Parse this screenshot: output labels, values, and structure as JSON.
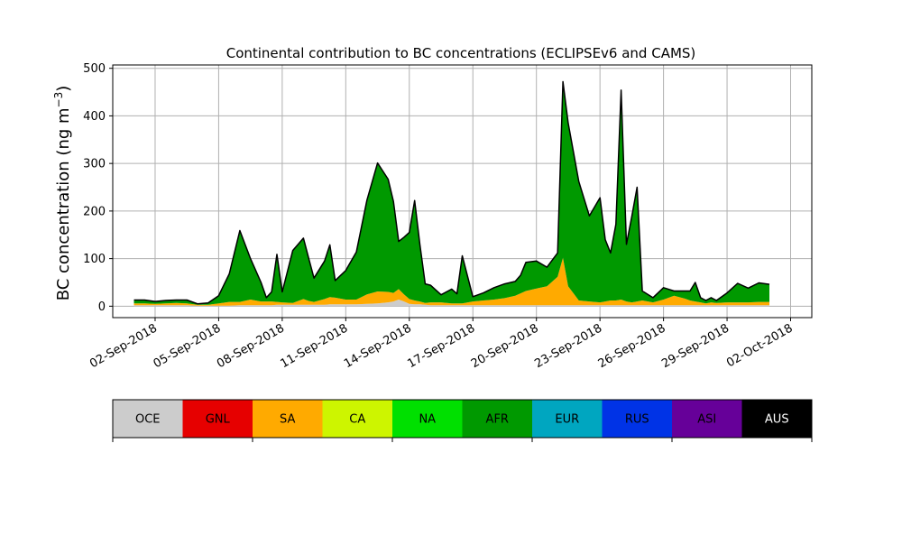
{
  "chart_data": {
    "type": "area",
    "title": "Continental contribution to BC concentrations (ECLIPSEv6 and CAMS)",
    "ylabel": "BC concentration (ng m",
    "ylabel_sup": "−3",
    "ylabel_close": ")",
    "xlabel": "",
    "ylim": [
      -24,
      507
    ],
    "xlim": [
      "2018-08-31",
      "2018-10-03"
    ],
    "grid": true,
    "x_ticks": [
      "02-Sep-2018",
      "05-Sep-2018",
      "08-Sep-2018",
      "11-Sep-2018",
      "14-Sep-2018",
      "17-Sep-2018",
      "20-Sep-2018",
      "23-Sep-2018",
      "26-Sep-2018",
      "29-Sep-2018",
      "02-Oct-2018"
    ],
    "y_ticks": [
      "0",
      "100",
      "200",
      "300",
      "400",
      "500"
    ],
    "y_tick_values": [
      0,
      100,
      200,
      300,
      400,
      500
    ],
    "legend_position": "bottom colorbar",
    "legend": [
      {
        "name": "OCE",
        "color": "#cccccc",
        "text_color": "#000000"
      },
      {
        "name": "GNL",
        "color": "#e60000",
        "text_color": "#000000"
      },
      {
        "name": "SA",
        "color": "#ffaa00",
        "text_color": "#000000"
      },
      {
        "name": "CA",
        "color": "#cdf500",
        "text_color": "#000000"
      },
      {
        "name": "NA",
        "color": "#00e000",
        "text_color": "#000000"
      },
      {
        "name": "AFR",
        "color": "#009900",
        "text_color": "#000000"
      },
      {
        "name": "EUR",
        "color": "#00a6c0",
        "text_color": "#000000"
      },
      {
        "name": "RUS",
        "color": "#0033e6",
        "text_color": "#000000"
      },
      {
        "name": "ASI",
        "color": "#660099",
        "text_color": "#000000"
      },
      {
        "name": "AUS",
        "color": "#000000",
        "text_color": "#ffffff"
      }
    ],
    "x": [
      "2018-09-01",
      "2018-09-01 12:00",
      "2018-09-02",
      "2018-09-02 12:00",
      "2018-09-03",
      "2018-09-03 12:00",
      "2018-09-04",
      "2018-09-04 12:00",
      "2018-09-05",
      "2018-09-05 12:00",
      "2018-09-06",
      "2018-09-06 12:00",
      "2018-09-07",
      "2018-09-07 06:00",
      "2018-09-07 12:00",
      "2018-09-07 18:00",
      "2018-09-08",
      "2018-09-08 12:00",
      "2018-09-09",
      "2018-09-09 06:00",
      "2018-09-09 12:00",
      "2018-09-10",
      "2018-09-10 06:00",
      "2018-09-10 12:00",
      "2018-09-11",
      "2018-09-11 12:00",
      "2018-09-12",
      "2018-09-12 12:00",
      "2018-09-13",
      "2018-09-13 06:00",
      "2018-09-13 12:00",
      "2018-09-13 18:00",
      "2018-09-14",
      "2018-09-14 06:00",
      "2018-09-14 12:00",
      "2018-09-14 18:00",
      "2018-09-15",
      "2018-09-15 12:00",
      "2018-09-16",
      "2018-09-16 06:00",
      "2018-09-16 12:00",
      "2018-09-17",
      "2018-09-17 12:00",
      "2018-09-18",
      "2018-09-18 12:00",
      "2018-09-19",
      "2018-09-19 06:00",
      "2018-09-19 12:00",
      "2018-09-20",
      "2018-09-20 12:00",
      "2018-09-21",
      "2018-09-21 06:00",
      "2018-09-21 12:00",
      "2018-09-22",
      "2018-09-22 12:00",
      "2018-09-23",
      "2018-09-23 06:00",
      "2018-09-23 12:00",
      "2018-09-23 18:00",
      "2018-09-24",
      "2018-09-24 06:00",
      "2018-09-24 12:00",
      "2018-09-24 18:00",
      "2018-09-25",
      "2018-09-25 12:00",
      "2018-09-26",
      "2018-09-26 12:00",
      "2018-09-27",
      "2018-09-27 06:00",
      "2018-09-27 12:00",
      "2018-09-27 18:00",
      "2018-09-28",
      "2018-09-28 06:00",
      "2018-09-28 12:00",
      "2018-09-29",
      "2018-09-29 12:00",
      "2018-09-30",
      "2018-09-30 12:00",
      "2018-10-01"
    ],
    "series": [
      {
        "name": "OCE",
        "color": "#cccccc",
        "values": [
          2,
          2,
          2,
          2,
          2,
          2,
          1,
          1,
          1,
          1,
          2,
          2,
          2,
          2,
          2,
          3,
          3,
          3,
          3,
          3,
          3,
          3,
          4,
          4,
          4,
          4,
          5,
          6,
          8,
          10,
          14,
          10,
          5,
          4,
          4,
          3,
          2,
          2,
          2,
          2,
          2,
          2,
          2,
          2,
          2,
          2,
          2,
          2,
          2,
          2,
          2,
          2,
          2,
          2,
          2,
          2,
          2,
          2,
          2,
          2,
          2,
          2,
          2,
          2,
          2,
          2,
          2,
          2,
          2,
          2,
          2,
          2,
          2,
          2,
          2,
          2,
          2,
          2,
          2
        ]
      },
      {
        "name": "GNL",
        "color": "#e60000",
        "values": [
          0,
          0,
          0,
          0,
          0,
          0,
          0,
          0,
          0,
          0,
          0,
          0,
          0,
          0,
          0,
          0,
          0,
          0,
          0,
          0,
          0,
          0,
          0,
          0,
          0,
          0,
          0,
          0,
          0,
          0,
          0,
          0,
          0,
          0,
          0,
          0,
          0,
          0,
          0,
          0,
          0,
          0,
          0,
          0,
          0,
          0,
          0,
          0,
          0,
          0,
          0,
          0,
          0,
          0,
          0,
          0,
          0,
          0,
          0,
          0,
          0,
          0,
          0,
          0,
          0,
          0,
          0,
          0,
          0,
          0,
          0,
          0,
          0,
          0,
          0,
          0,
          0,
          0,
          0
        ]
      },
      {
        "name": "SA",
        "color": "#ffaa00",
        "values": [
          4,
          4,
          3,
          4,
          5,
          4,
          2,
          2,
          5,
          8,
          7,
          12,
          8,
          8,
          8,
          6,
          5,
          4,
          12,
          8,
          6,
          12,
          15,
          14,
          10,
          10,
          20,
          25,
          22,
          18,
          22,
          15,
          10,
          8,
          6,
          4,
          6,
          6,
          4,
          4,
          4,
          8,
          10,
          12,
          15,
          20,
          25,
          30,
          35,
          40,
          60,
          100,
          40,
          10,
          8,
          6,
          8,
          10,
          10,
          12,
          8,
          6,
          8,
          10,
          6,
          12,
          20,
          14,
          10,
          8,
          6,
          4,
          6,
          5,
          6,
          6,
          6,
          7,
          7
        ]
      },
      {
        "name": "CA",
        "color": "#cdf500",
        "values": [
          0,
          0,
          0,
          0,
          0,
          0,
          0,
          0,
          0,
          0,
          0,
          0,
          0,
          0,
          0,
          0,
          0,
          0,
          0,
          0,
          0,
          0,
          0,
          0,
          0,
          0,
          0,
          0,
          0,
          0,
          0,
          0,
          0,
          0,
          0,
          0,
          0,
          0,
          0,
          0,
          0,
          0,
          0,
          0,
          0,
          0,
          0,
          0,
          0,
          0,
          0,
          0,
          0,
          0,
          0,
          0,
          0,
          0,
          0,
          0,
          0,
          0,
          0,
          0,
          0,
          0,
          0,
          0,
          0,
          0,
          0,
          0,
          0,
          0,
          0,
          0,
          0,
          0,
          0
        ]
      },
      {
        "name": "NA",
        "color": "#00e000",
        "values": [
          0,
          0,
          0,
          0,
          0,
          0,
          0,
          0,
          0,
          0,
          0,
          0,
          0,
          0,
          0,
          0,
          0,
          0,
          0,
          0,
          0,
          0,
          0,
          0,
          0,
          0,
          0,
          0,
          0,
          0,
          0,
          0,
          0,
          0,
          0,
          0,
          0,
          0,
          0,
          0,
          0,
          0,
          0,
          0,
          0,
          0,
          0,
          0,
          0,
          0,
          0,
          0,
          0,
          0,
          0,
          0,
          0,
          0,
          0,
          0,
          0,
          0,
          0,
          0,
          0,
          0,
          0,
          0,
          0,
          0,
          0,
          0,
          0,
          0,
          0,
          0,
          0,
          0,
          0
        ]
      },
      {
        "name": "AFR",
        "color": "#009900",
        "values": [
          7,
          7,
          5,
          6,
          6,
          7,
          2,
          4,
          16,
          59,
          150,
          86,
          40,
          8,
          20,
          100,
          22,
          110,
          128,
          90,
          50,
          80,
          110,
          36,
          61,
          100,
          198,
          270,
          237,
          192,
          100,
          120,
          140,
          210,
          120,
          40,
          36,
          16,
          30,
          20,
          100,
          10,
          16,
          25,
          30,
          30,
          38,
          60,
          58,
          40,
          50,
          370,
          343,
          250,
          180,
          220,
          130,
          100,
          160,
          440,
          120,
          180,
          240,
          20,
          10,
          25,
          10,
          16,
          20,
          40,
          10,
          6,
          10,
          5,
          20,
          40,
          30,
          40,
          37
        ]
      },
      {
        "name": "EUR",
        "color": "#00a6c0",
        "values": [
          0,
          0,
          0,
          0,
          0,
          0,
          0,
          0,
          0,
          0,
          0,
          0,
          0,
          0,
          0,
          0,
          0,
          0,
          0,
          0,
          0,
          0,
          0,
          0,
          0,
          0,
          0,
          0,
          0,
          0,
          0,
          0,
          0,
          0,
          0,
          0,
          0,
          0,
          0,
          0,
          0,
          0,
          0,
          0,
          0,
          0,
          0,
          0,
          0,
          0,
          0,
          0,
          0,
          0,
          0,
          0,
          0,
          0,
          0,
          0,
          0,
          0,
          0,
          0,
          0,
          0,
          0,
          0,
          0,
          0,
          0,
          0,
          0,
          0,
          0,
          0,
          0,
          0,
          0
        ]
      },
      {
        "name": "RUS",
        "color": "#0033e6",
        "values": [
          0,
          0,
          0,
          0,
          0,
          0,
          0,
          0,
          0,
          0,
          0,
          0,
          0,
          0,
          0,
          0,
          0,
          0,
          0,
          0,
          0,
          0,
          0,
          0,
          0,
          0,
          0,
          0,
          0,
          0,
          0,
          0,
          0,
          0,
          0,
          0,
          0,
          0,
          0,
          0,
          0,
          0,
          0,
          0,
          0,
          0,
          0,
          0,
          0,
          0,
          0,
          0,
          0,
          0,
          0,
          0,
          0,
          0,
          0,
          0,
          0,
          0,
          0,
          0,
          0,
          0,
          0,
          0,
          0,
          0,
          0,
          0,
          0,
          0,
          0,
          0,
          0,
          0,
          0
        ]
      },
      {
        "name": "ASI",
        "color": "#660099",
        "values": [
          0,
          0,
          0,
          0,
          0,
          0,
          0,
          0,
          0,
          0,
          0,
          0,
          0,
          0,
          0,
          0,
          0,
          0,
          0,
          0,
          0,
          0,
          0,
          0,
          0,
          0,
          0,
          0,
          0,
          0,
          0,
          0,
          0,
          0,
          0,
          0,
          0,
          0,
          0,
          0,
          0,
          0,
          0,
          0,
          0,
          0,
          0,
          0,
          0,
          0,
          0,
          0,
          0,
          0,
          0,
          0,
          0,
          0,
          0,
          0,
          0,
          0,
          0,
          0,
          0,
          0,
          0,
          0,
          0,
          0,
          0,
          0,
          0,
          0,
          0,
          0,
          0,
          0,
          0
        ]
      },
      {
        "name": "AUS",
        "color": "#000000",
        "values": [
          0,
          0,
          0,
          0,
          0,
          0,
          0,
          0,
          0,
          0,
          0,
          0,
          0,
          0,
          0,
          0,
          0,
          0,
          0,
          0,
          0,
          0,
          0,
          0,
          0,
          0,
          0,
          0,
          0,
          0,
          0,
          0,
          0,
          0,
          0,
          0,
          0,
          0,
          0,
          0,
          0,
          0,
          0,
          0,
          0,
          0,
          0,
          0,
          0,
          0,
          0,
          0,
          0,
          0,
          0,
          0,
          0,
          0,
          0,
          0,
          0,
          0,
          0,
          0,
          0,
          0,
          0,
          0,
          0,
          0,
          0,
          0,
          0,
          0,
          0,
          0,
          0,
          0,
          0
        ]
      }
    ]
  }
}
